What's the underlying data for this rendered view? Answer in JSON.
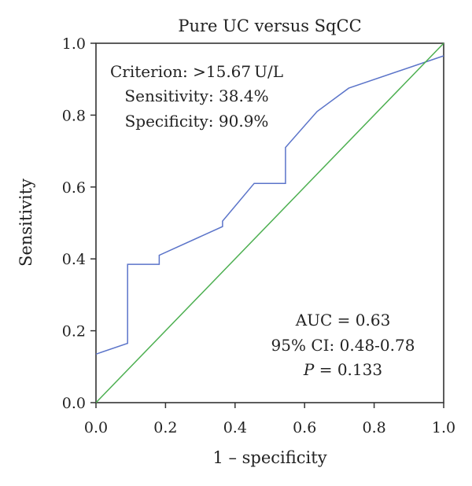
{
  "chart_data": {
    "type": "line",
    "title": "Pure UC versus SqCC",
    "xlabel": "1 – specificity",
    "ylabel": "Sensitivity",
    "xlim": [
      0,
      1
    ],
    "ylim": [
      0,
      1
    ],
    "x_ticks": [
      "0.0",
      "0.2",
      "0.4",
      "0.6",
      "0.8",
      "1.0"
    ],
    "y_ticks": [
      "0.0",
      "0.2",
      "0.4",
      "0.6",
      "0.8",
      "1.0"
    ],
    "grid": false,
    "legend": "none",
    "series": [
      {
        "color": "#5b74c9",
        "points": [
          [
            0.0,
            0.135
          ],
          [
            0.091,
            0.165
          ],
          [
            0.091,
            0.385
          ],
          [
            0.182,
            0.385
          ],
          [
            0.182,
            0.41
          ],
          [
            0.364,
            0.49
          ],
          [
            0.364,
            0.505
          ],
          [
            0.455,
            0.61
          ],
          [
            0.545,
            0.61
          ],
          [
            0.545,
            0.71
          ],
          [
            0.636,
            0.81
          ],
          [
            0.727,
            0.875
          ],
          [
            1.0,
            0.965
          ]
        ]
      },
      {
        "color": "#4caf50",
        "points": [
          [
            0,
            0
          ],
          [
            1,
            1
          ]
        ]
      }
    ],
    "annotations": {
      "criterion": "Criterion: >15.67 U/L",
      "sensitivity": "Sensitivity: 38.4%",
      "specificity": "Specificity: 90.9%",
      "auc": "AUC = 0.63",
      "ci": "95% CI: 0.48-0.78",
      "p_symbol": "P",
      "p_value": " = 0.133"
    }
  }
}
